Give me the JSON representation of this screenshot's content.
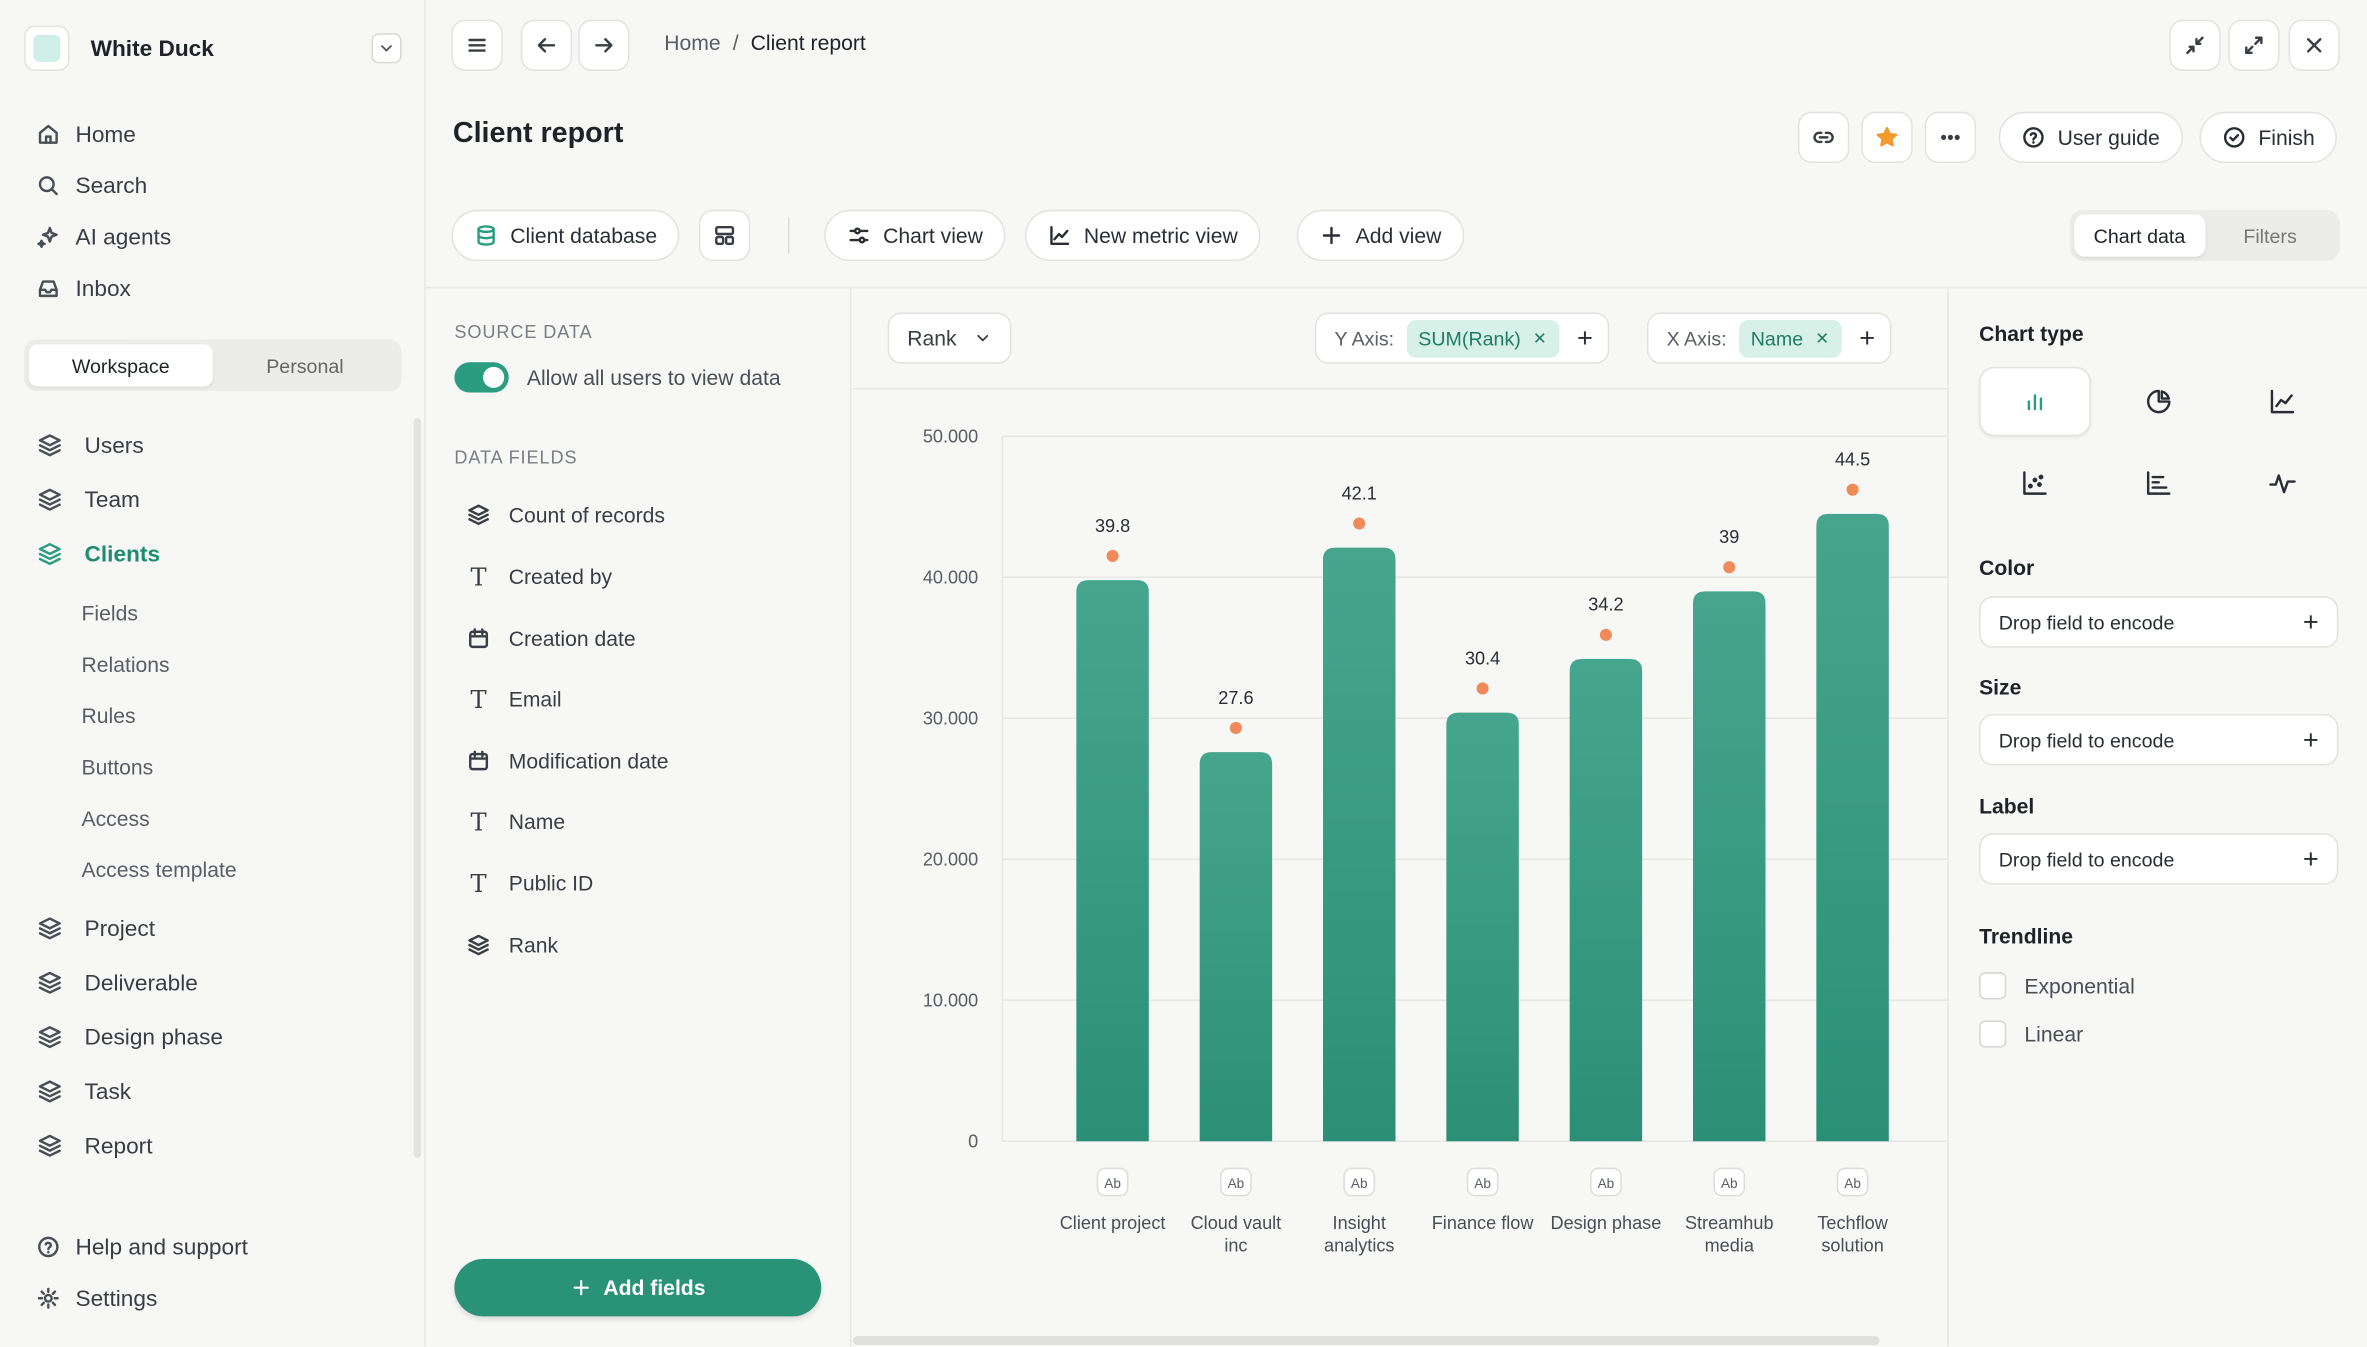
{
  "workspace": {
    "name": "White Duck"
  },
  "nav": [
    {
      "label": "Home",
      "icon": "home-icon"
    },
    {
      "label": "Search",
      "icon": "search-icon"
    },
    {
      "label": "AI agents",
      "icon": "sparkle-icon"
    },
    {
      "label": "Inbox",
      "icon": "inbox-icon"
    }
  ],
  "scope_tabs": {
    "workspace": "Workspace",
    "personal": "Personal",
    "active": "Workspace"
  },
  "tables": {
    "users": "Users",
    "team": "Team",
    "clients": "Clients",
    "clients_sub": [
      "Fields",
      "Relations",
      "Rules",
      "Buttons",
      "Access",
      "Access template"
    ],
    "rest": [
      "Project",
      "Deliverable",
      "Design phase",
      "Task",
      "Report"
    ]
  },
  "footer_nav": {
    "help": "Help and support",
    "settings": "Settings"
  },
  "breadcrumb": {
    "home": "Home",
    "separator": "/",
    "current": "Client report"
  },
  "page": {
    "title": "Client report"
  },
  "header_actions": {
    "user_guide": "User guide",
    "finish": "Finish"
  },
  "views": {
    "database": "Client database",
    "chart_view": "Chart view",
    "new_metric": "New metric view",
    "add_view": "Add view"
  },
  "panel_tabs": {
    "chart_data": "Chart data",
    "filters": "Filters",
    "active": "Chart data"
  },
  "source": {
    "heading": "SOURCE DATA",
    "toggle_label": "Allow all users to view data",
    "toggle_on": true
  },
  "data_fields": {
    "heading": "DATA FIELDS",
    "items": [
      {
        "label": "Count of records",
        "type": "layers"
      },
      {
        "label": "Created by",
        "type": "text"
      },
      {
        "label": "Creation date",
        "type": "date"
      },
      {
        "label": "Email",
        "type": "text"
      },
      {
        "label": "Modification date",
        "type": "date"
      },
      {
        "label": "Name",
        "type": "text"
      },
      {
        "label": "Public ID",
        "type": "text"
      },
      {
        "label": "Rank",
        "type": "layers"
      }
    ],
    "add_button": "Add fields"
  },
  "chart_controls": {
    "measure": "Rank",
    "y_axis_label": "Y Axis:",
    "y_axis_value": "SUM(Rank)",
    "x_axis_label": "X Axis:",
    "x_axis_value": "Name"
  },
  "chart_data": {
    "type": "bar",
    "categories": [
      [
        "Client project"
      ],
      [
        "Cloud vault",
        "inc"
      ],
      [
        "Insight",
        "analytics"
      ],
      [
        "Finance flow"
      ],
      [
        "Design phase"
      ],
      [
        "Streamhub",
        "media"
      ],
      [
        "Techflow",
        "solution"
      ]
    ],
    "values": [
      39.8,
      27.6,
      42.1,
      30.4,
      34.2,
      39,
      44.5
    ],
    "data_labels": [
      "39.8",
      "27.6",
      "42.1",
      "30.4",
      "34.2",
      "39",
      "44.5"
    ],
    "y_ticks": [
      "0",
      "10.000",
      "20.000",
      "30.000",
      "40.000",
      "50.000"
    ],
    "y_tick_values": [
      0,
      10,
      20,
      30,
      40,
      50
    ],
    "ylim": [
      0,
      50
    ],
    "category_type_badge": "Ab",
    "grid": true,
    "bar_color": "#3a9f86",
    "marker_color": "#ef8a5a"
  },
  "right_panel": {
    "chart_type_heading": "Chart type",
    "chart_types": [
      "bar-chart-icon",
      "pie-chart-icon",
      "line-chart-icon",
      "scatter-chart-icon",
      "horizontal-bar-icon",
      "pulse-chart-icon"
    ],
    "active_chart_type": "bar-chart-icon",
    "color_heading": "Color",
    "size_heading": "Size",
    "label_heading": "Label",
    "drop_placeholder": "Drop field to encode",
    "trendline_heading": "Trendline",
    "trendlines": [
      "Exponential",
      "Linear"
    ]
  },
  "colors": {
    "accent": "#2a9d80",
    "button": "#2a9377",
    "star": "#f29a2e"
  }
}
